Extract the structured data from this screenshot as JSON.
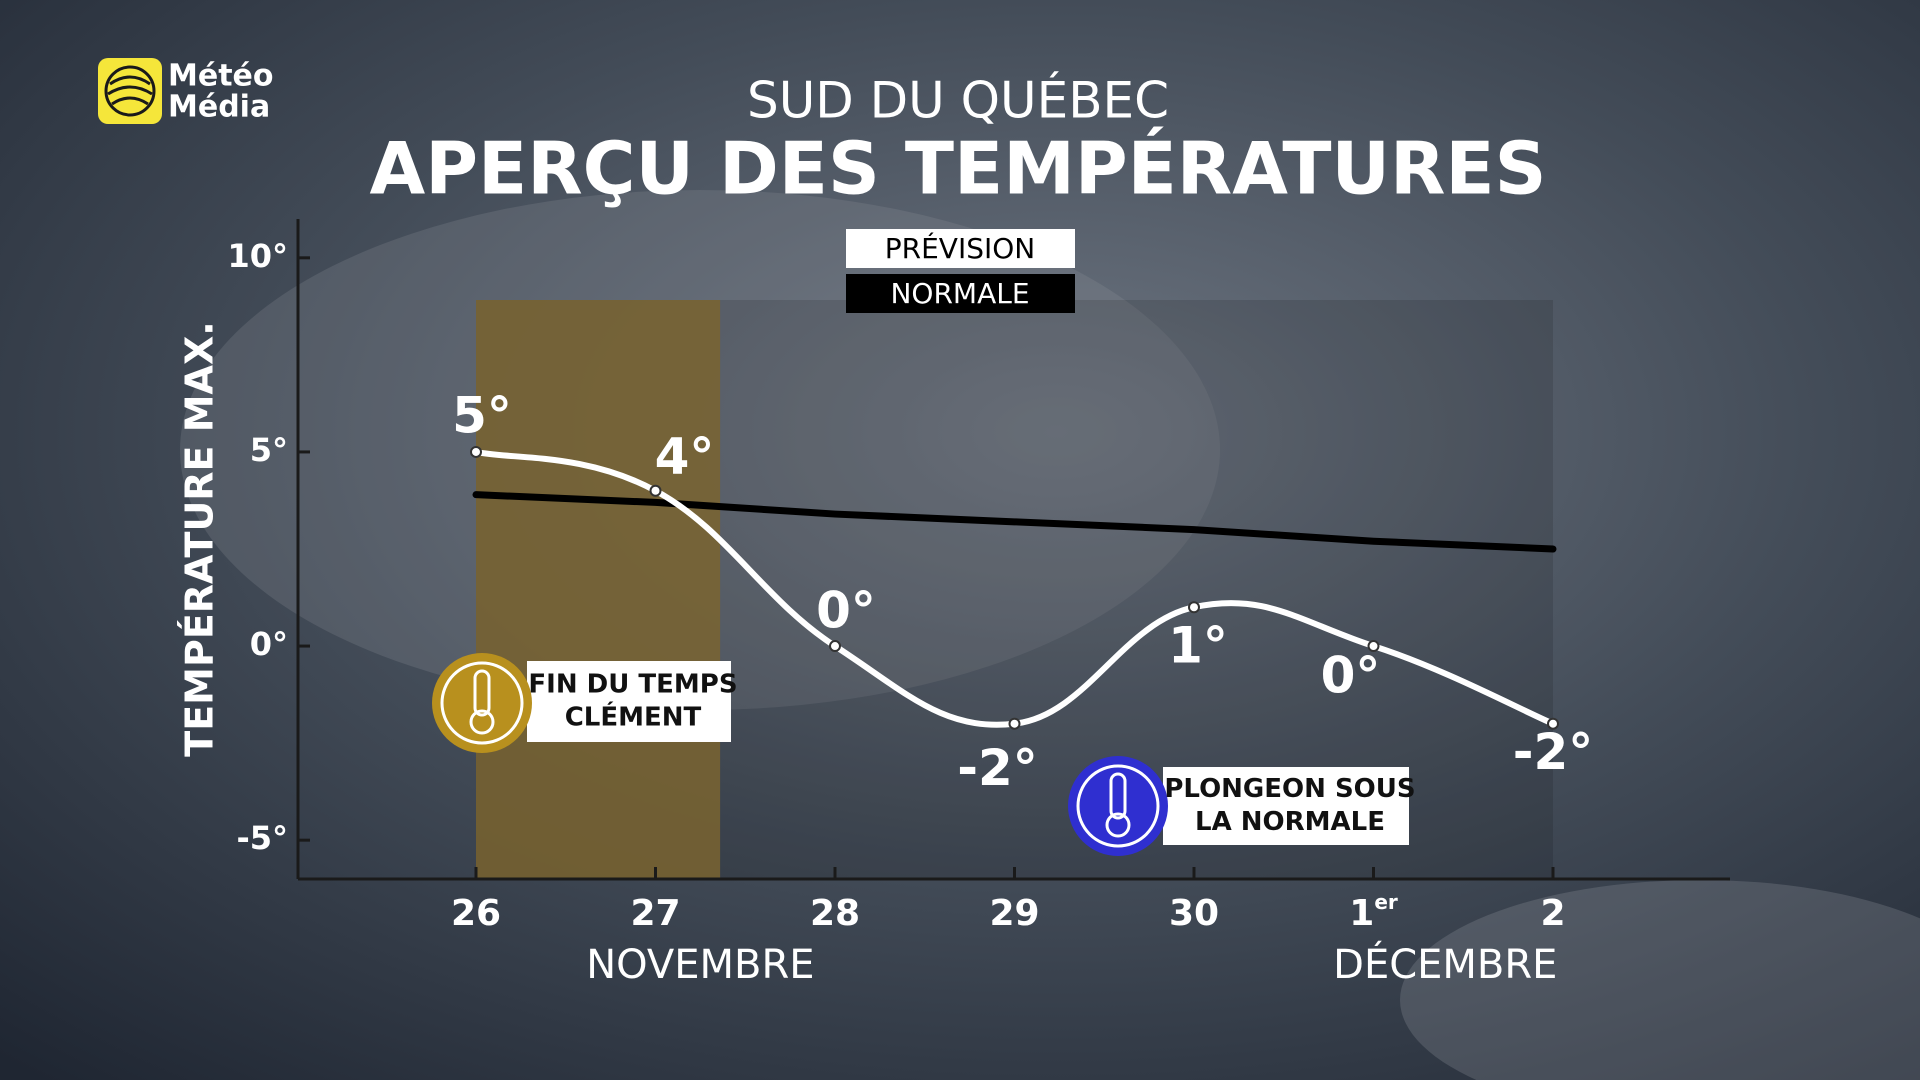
{
  "logo_lines": [
    "Météo",
    "Média"
  ],
  "chart_data": {
    "type": "line",
    "subtitle": "SUD DU QUÉBEC",
    "title": "APERÇU DES TEMPÉRATURES",
    "y_label": "TEMPÉRATURE MAX.",
    "categories": [
      "26",
      "27",
      "28",
      "29",
      "30",
      "1er",
      "2"
    ],
    "x_group_labels": [
      "NOVEMBRE",
      "DÉCEMBRE"
    ],
    "series": [
      {
        "name": "PRÉVISION",
        "color": "#ffffff",
        "values": [
          5,
          4,
          0,
          -2,
          1,
          0,
          -2
        ],
        "value_labels": [
          "5°",
          "4°",
          "0°",
          "-2°",
          "1°",
          "0°",
          "-2°"
        ],
        "smooth": true
      },
      {
        "name": "NORMALE",
        "color": "#000000",
        "values": [
          3.9,
          3.7,
          3.4,
          3.2,
          3.0,
          2.7,
          2.5
        ]
      }
    ],
    "ylim": [
      -6,
      11
    ],
    "yticks": [
      {
        "value": 10,
        "label": "10°"
      },
      {
        "value": 5,
        "label": "5°"
      },
      {
        "value": 0,
        "label": "0°"
      },
      {
        "value": -5,
        "label": "-5°"
      }
    ],
    "annotations": [
      {
        "lines": [
          "FIN DU TEMPS",
          "CLÉMENT"
        ],
        "color": "#b8901e"
      },
      {
        "lines": [
          "PLONGEON SOUS",
          "LA NORMALE"
        ],
        "color": "#2f2fd0"
      }
    ]
  }
}
